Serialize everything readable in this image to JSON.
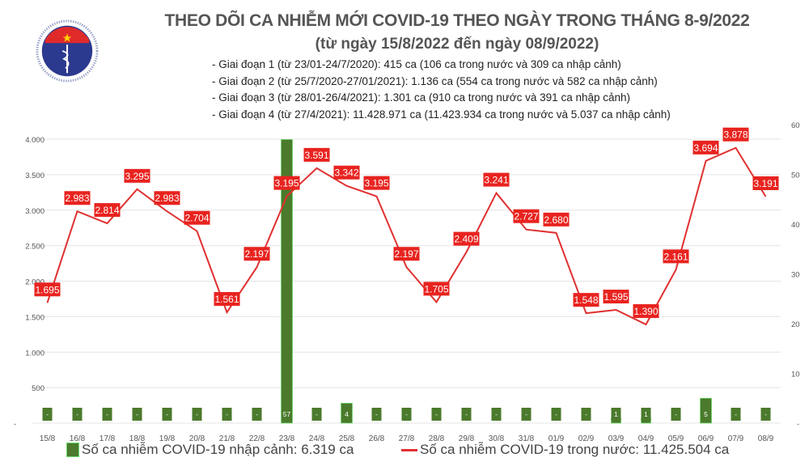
{
  "logo": {
    "top_text": "BỘ Y TẾ",
    "bottom_text": "MINISTRY OF HEALTH",
    "colors": {
      "blue": "#2b3a8f",
      "red": "#e02a2a"
    }
  },
  "title": "THEO DÕI CA NHIỄM MỚI COVID-19 THEO NGÀY TRONG THÁNG 8-9/2022",
  "subtitle": "(từ ngày 15/8/2022 đến ngày 08/9/2022)",
  "notes": [
    "- Giai đoạn 1 (từ 23/01-24/7/2020): 415 ca (106 ca trong nước và 309 ca nhập cảnh)",
    "- Giai đoạn 2 (từ 25/7/2020-27/01/2021): 1.136 ca (554 ca trong nước và 582 ca nhập cảnh)",
    "- Giai đoạn 3 (từ 28/01-26/4/2021): 1.301 ca (910 ca trong nước và 391 ca nhập cảnh)",
    "- Giai đoạn 4 (từ 27/4/2021): 11.428.971 ca (11.423.934 ca trong nước và 5.037 ca nhập cảnh)"
  ],
  "chart_data": {
    "type": "bar+line",
    "categories": [
      "15/8",
      "16/8",
      "17/8",
      "18/8",
      "19/8",
      "20/8",
      "21/8",
      "22/8",
      "23/8",
      "24/8",
      "25/8",
      "26/8",
      "27/8",
      "28/8",
      "29/8",
      "30/8",
      "31/8",
      "01/9",
      "02/9",
      "03/9",
      "04/9",
      "05/9",
      "06/9",
      "07/9",
      "08/9"
    ],
    "series": [
      {
        "name": "Số ca nhiễm COVID-19 nhập cảnh: 6.319 ca",
        "type": "bar",
        "axis": "right",
        "color": "#4b7a2c",
        "values": [
          0,
          0,
          0,
          0,
          0,
          0,
          0,
          0,
          57,
          0,
          4,
          0,
          0,
          0,
          0,
          0,
          0,
          0,
          0,
          1,
          1,
          0,
          5,
          0,
          0
        ]
      },
      {
        "name": "Số ca nhiễm COVID-19 trong nước: 11.425.504 ca",
        "type": "line",
        "axis": "left",
        "color": "#e03030",
        "values": [
          1695,
          2983,
          2814,
          3295,
          2983,
          2704,
          1561,
          2197,
          3195,
          3591,
          3342,
          3195,
          2197,
          1705,
          2409,
          3241,
          2727,
          2680,
          1548,
          1595,
          1390,
          2161,
          3694,
          3878,
          3191
        ]
      }
    ],
    "left_axis": {
      "range": [
        0,
        4000
      ],
      "ticks": [
        "-",
        "500",
        "1.000",
        "1.500",
        "2.000",
        "2.500",
        "3.000",
        "3.500",
        "4.000"
      ]
    },
    "right_axis": {
      "range": [
        0,
        60
      ],
      "ticks": [
        "-",
        "10",
        "20",
        "30",
        "40",
        "50",
        "60"
      ]
    },
    "grid": "horizontal",
    "legend": "bottom"
  }
}
